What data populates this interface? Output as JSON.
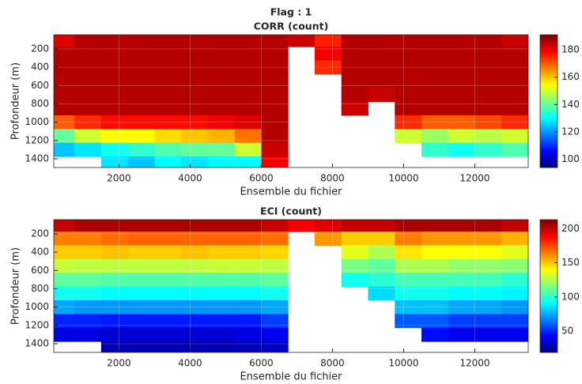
{
  "title": "Flag : 1",
  "chart_data": [
    {
      "type": "heatmap",
      "title": "CORR (count)",
      "xlabel": "Ensemble du fichier",
      "ylabel": "Profondeur (m)",
      "colormap": "jet",
      "y_reversed": true,
      "grid": true,
      "xlim": [
        170,
        13500
      ],
      "ylim": [
        45,
        1495
      ],
      "clim": [
        94,
        191
      ],
      "xticks": [
        2000,
        4000,
        6000,
        8000,
        10000,
        12000
      ],
      "yticks": [
        200,
        400,
        600,
        800,
        1000,
        1200,
        1400
      ],
      "cticks": [
        100,
        120,
        140,
        160,
        180
      ],
      "x": [
        375,
        1125,
        1875,
        2625,
        3375,
        4125,
        4875,
        5625,
        6375,
        7125,
        7875,
        8625,
        9375,
        10125,
        10875,
        11625,
        12375,
        13125
      ],
      "y": [
        100,
        250,
        400,
        550,
        700,
        850,
        1000,
        1150,
        1300,
        1450
      ],
      "z": [
        [
          182,
          186,
          186,
          186,
          186,
          186,
          186,
          186,
          186,
          184,
          176,
          186,
          186,
          186,
          186,
          186,
          186,
          184
        ],
        [
          186,
          186,
          186,
          186,
          186,
          186,
          186,
          186,
          186,
          null,
          180,
          186,
          186,
          186,
          186,
          186,
          186,
          186
        ],
        [
          186,
          186,
          186,
          186,
          186,
          186,
          186,
          186,
          186,
          null,
          175,
          186,
          186,
          186,
          186,
          186,
          186,
          186
        ],
        [
          186,
          186,
          186,
          186,
          186,
          186,
          186,
          186,
          186,
          null,
          null,
          186,
          186,
          186,
          186,
          186,
          186,
          186
        ],
        [
          186,
          186,
          186,
          186,
          186,
          186,
          186,
          186,
          186,
          null,
          null,
          186,
          184,
          186,
          186,
          186,
          186,
          186
        ],
        [
          186,
          186,
          186,
          186,
          186,
          186,
          186,
          186,
          186,
          null,
          null,
          184,
          null,
          186,
          186,
          186,
          186,
          186
        ],
        [
          170,
          175,
          178,
          178,
          178,
          178,
          180,
          182,
          186,
          null,
          null,
          null,
          null,
          175,
          170,
          170,
          172,
          175
        ],
        [
          140,
          150,
          155,
          155,
          158,
          160,
          162,
          168,
          186,
          null,
          null,
          null,
          null,
          150,
          145,
          150,
          148,
          150
        ],
        [
          125,
          128,
          132,
          135,
          138,
          140,
          140,
          150,
          184,
          null,
          null,
          null,
          null,
          null,
          135,
          132,
          135,
          138
        ],
        [
          null,
          null,
          128,
          125,
          130,
          128,
          130,
          130,
          180,
          null,
          null,
          null,
          null,
          null,
          null,
          null,
          null,
          null
        ]
      ]
    },
    {
      "type": "heatmap",
      "title": "ECI (count)",
      "xlabel": "Ensemble du fichier",
      "ylabel": "Profondeur (m)",
      "colormap": "jet",
      "y_reversed": true,
      "grid": true,
      "xlim": [
        170,
        13500
      ],
      "ylim": [
        45,
        1495
      ],
      "clim": [
        19,
        213
      ],
      "xticks": [
        2000,
        4000,
        6000,
        8000,
        10000,
        12000
      ],
      "yticks": [
        200,
        400,
        600,
        800,
        1000,
        1200,
        1400
      ],
      "cticks": [
        50,
        100,
        150,
        200
      ],
      "x": [
        375,
        1125,
        1875,
        2625,
        3375,
        4125,
        4875,
        5625,
        6375,
        7125,
        7875,
        8625,
        9375,
        10125,
        10875,
        11625,
        12375,
        13125
      ],
      "y": [
        100,
        250,
        400,
        550,
        700,
        850,
        1000,
        1150,
        1300,
        1450
      ],
      "z": [
        [
          200,
          205,
          205,
          205,
          205,
          205,
          205,
          205,
          200,
          190,
          195,
          200,
          200,
          205,
          205,
          205,
          205,
          200
        ],
        [
          165,
          165,
          168,
          170,
          170,
          170,
          170,
          170,
          168,
          null,
          160,
          150,
          150,
          165,
          160,
          160,
          160,
          155
        ],
        [
          150,
          150,
          152,
          150,
          150,
          152,
          150,
          150,
          148,
          null,
          null,
          135,
          125,
          145,
          140,
          140,
          140,
          135
        ],
        [
          130,
          128,
          128,
          128,
          128,
          128,
          130,
          130,
          128,
          null,
          null,
          115,
          110,
          125,
          125,
          120,
          120,
          118
        ],
        [
          110,
          110,
          108,
          108,
          108,
          108,
          108,
          108,
          110,
          null,
          null,
          95,
          100,
          105,
          105,
          105,
          105,
          100
        ],
        [
          95,
          95,
          92,
          92,
          92,
          92,
          92,
          92,
          95,
          null,
          null,
          null,
          85,
          95,
          95,
          92,
          92,
          90
        ],
        [
          75,
          72,
          72,
          72,
          72,
          72,
          72,
          72,
          75,
          null,
          null,
          null,
          null,
          80,
          80,
          75,
          75,
          72
        ],
        [
          50,
          50,
          48,
          48,
          48,
          48,
          48,
          48,
          55,
          null,
          null,
          null,
          null,
          60,
          60,
          55,
          55,
          55
        ],
        [
          38,
          38,
          35,
          35,
          35,
          35,
          35,
          38,
          40,
          null,
          null,
          null,
          null,
          null,
          45,
          40,
          40,
          40
        ],
        [
          null,
          null,
          28,
          28,
          28,
          28,
          28,
          30,
          32,
          null,
          null,
          null,
          null,
          null,
          null,
          null,
          null,
          null
        ]
      ]
    }
  ]
}
